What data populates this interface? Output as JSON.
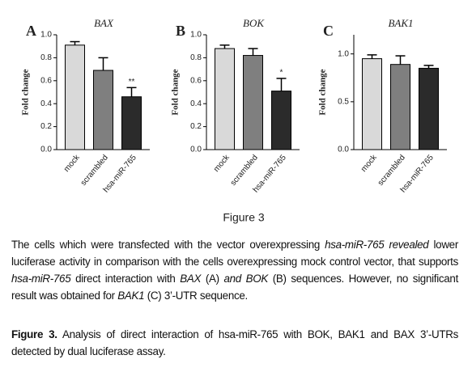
{
  "chart_data": [
    {
      "type": "bar",
      "panel": "A",
      "title": "BAX",
      "ylabel": "Fold change",
      "categories": [
        "mock",
        "scrambled",
        "hsa-miR-765"
      ],
      "values": [
        0.91,
        0.69,
        0.46
      ],
      "errors": [
        0.03,
        0.11,
        0.08
      ],
      "colors": [
        "#d9d9d9",
        "#7f7f7f",
        "#2b2b2b"
      ],
      "significance": [
        null,
        null,
        "**"
      ],
      "ylim": [
        0,
        1.0
      ],
      "yticks": [
        {
          "value": 0,
          "label": "0.0"
        },
        0.2,
        0.4,
        0.6,
        0.8,
        {
          "value": 1,
          "label": "1.0"
        }
      ]
    },
    {
      "type": "bar",
      "panel": "B",
      "title": "BOK",
      "ylabel": "Fold change",
      "categories": [
        "mock",
        "scrambled",
        "hsa-miR-765"
      ],
      "values": [
        0.88,
        0.82,
        0.51
      ],
      "errors": [
        0.03,
        0.06,
        0.11
      ],
      "colors": [
        "#d9d9d9",
        "#7f7f7f",
        "#2b2b2b"
      ],
      "significance": [
        null,
        null,
        "*"
      ],
      "ylim": [
        0,
        1.0
      ],
      "yticks": [
        {
          "value": 0,
          "label": "0.0"
        },
        0.2,
        0.4,
        0.6,
        0.8,
        {
          "value": 1,
          "label": "1.0"
        }
      ]
    },
    {
      "type": "bar",
      "panel": "C",
      "title": "BAK1",
      "ylabel": "Fold change",
      "categories": [
        "mock",
        "scrambled",
        "hsa-miR-765"
      ],
      "values": [
        0.95,
        0.89,
        0.85
      ],
      "errors": [
        0.04,
        0.09,
        0.03
      ],
      "colors": [
        "#d9d9d9",
        "#7f7f7f",
        "#2b2b2b"
      ],
      "ylim": [
        0,
        1.2
      ],
      "yticks": [
        {
          "value": 0,
          "label": "0.0"
        },
        0.5,
        {
          "value": 1,
          "label": "1.0"
        }
      ]
    }
  ],
  "figure_label": "Figure 3",
  "description": [
    {
      "text": "The cells which were transfected with the vector overexpressing ",
      "italic": false
    },
    {
      "text": "hsa-miR-765 revealed",
      "italic": true
    },
    {
      "text": " lower luciferase activity in comparison with the cells overexpressing mock control vector, that supports ",
      "italic": false
    },
    {
      "text": "hsa-miR-765",
      "italic": true
    },
    {
      "text": " direct interaction with ",
      "italic": false
    },
    {
      "text": "BAX",
      "italic": true
    },
    {
      "text": " (A) ",
      "italic": false
    },
    {
      "text": "and BOK",
      "italic": true
    },
    {
      "text": " (B) sequences. However, no significant result was obtained for ",
      "italic": false
    },
    {
      "text": "BAK1",
      "italic": true
    },
    {
      "text": " (C) 3’-UTR sequence.",
      "italic": false
    }
  ],
  "caption": {
    "label": "Figure 3.",
    "text": "Analysis of direct interaction of hsa-miR-765 with BOK, BAK1 and BAX 3’-UTRs detected by dual luciferase assay."
  }
}
